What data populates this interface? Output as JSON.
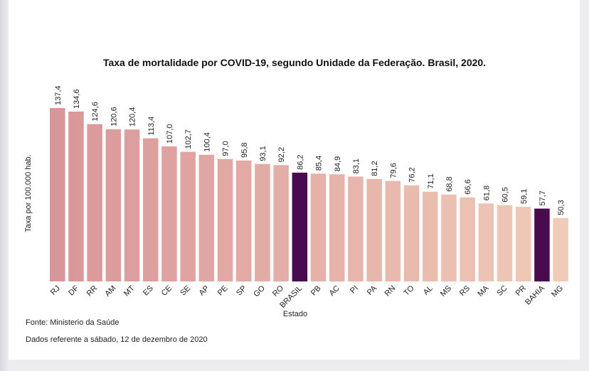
{
  "chart_data": {
    "type": "bar",
    "title": "Taxa de mortalidade por COVID-19, segundo Unidade da Federação. Brasil, 2020.",
    "xlabel": "Estado",
    "ylabel": "Taxa por 100.000 hab.",
    "categories": [
      "RJ",
      "DF",
      "RR",
      "AM",
      "MT",
      "ES",
      "CE",
      "SE",
      "AP",
      "PE",
      "SP",
      "GO",
      "RO",
      "BRASIL",
      "PB",
      "AC",
      "PI",
      "PA",
      "RN",
      "TO",
      "AL",
      "MS",
      "RS",
      "MA",
      "SC",
      "PR",
      "BAHIA",
      "MG"
    ],
    "values": [
      137.4,
      134.6,
      124.6,
      120.6,
      120.4,
      113.4,
      107.0,
      102.7,
      100.4,
      97.0,
      95.8,
      93.1,
      92.2,
      86.2,
      85.4,
      84.9,
      83.1,
      81.2,
      79.6,
      76.2,
      71.1,
      68.8,
      66.6,
      61.8,
      60.5,
      59.1,
      57.7,
      50.3
    ],
    "value_labels": [
      "137,4",
      "134,6",
      "124,6",
      "120,6",
      "120,4",
      "113,4",
      "107,0",
      "102,7",
      "100,4",
      "97,0",
      "95,8",
      "93,1",
      "92,2",
      "86,2",
      "85,4",
      "84,9",
      "83,1",
      "81,2",
      "79,6",
      "76,2",
      "71,1",
      "68,8",
      "66,6",
      "61,8",
      "60,5",
      "59,1",
      "57,7",
      "50,3"
    ],
    "highlighted": [
      "BRASIL",
      "BAHIA"
    ],
    "highlight_color": "#4a0a50",
    "gradient_colors": [
      "#d9969a",
      "#f0cbb7"
    ],
    "grid": false,
    "legend": "none"
  },
  "footer": {
    "source": "Fonte: Ministerio da Saúde",
    "date_note": "Dados referente a  sábado, 12 de dezembro de 2020"
  }
}
